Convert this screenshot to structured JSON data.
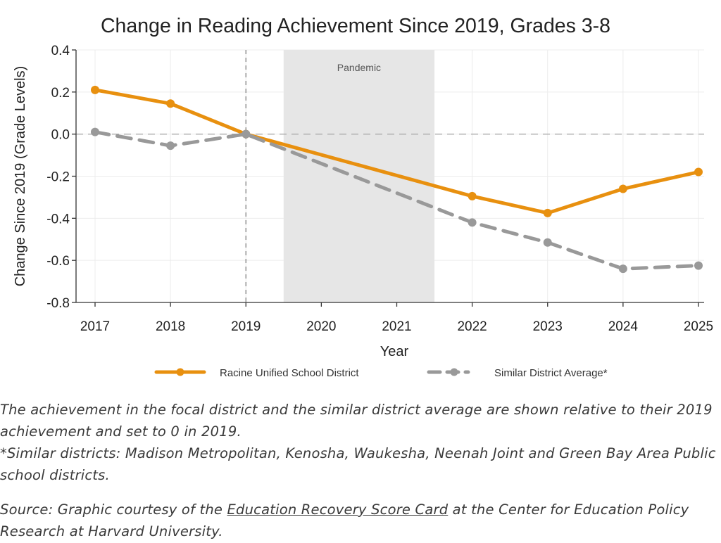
{
  "chart_data": {
    "type": "line",
    "title": "Change in Reading Achievement Since 2019, Grades 3-8",
    "xlabel": "Year",
    "ylabel": "Change Since 2019 (Grade Levels)",
    "x": [
      2017,
      2018,
      2019,
      2020,
      2021,
      2022,
      2023,
      2024,
      2025
    ],
    "ylim": [
      -0.8,
      0.4
    ],
    "yticks": [
      0.4,
      0.2,
      0.0,
      -0.2,
      -0.4,
      -0.6,
      -0.8
    ],
    "ytick_labels": [
      "0.4",
      "0.2",
      "0.0",
      "-0.2",
      "-0.4",
      "-0.6",
      "-0.8"
    ],
    "grid": true,
    "legend_position": "bottom",
    "series": [
      {
        "name": "Racine Unified School District",
        "x": [
          2017,
          2018,
          2019,
          2022,
          2023,
          2024,
          2025
        ],
        "values": [
          0.21,
          0.145,
          0.0,
          -0.295,
          -0.375,
          -0.26,
          -0.18
        ],
        "color": "#E8900F",
        "style": "solid"
      },
      {
        "name": "Similar District Average*",
        "x": [
          2017,
          2018,
          2019,
          2022,
          2023,
          2024,
          2025
        ],
        "values": [
          0.01,
          -0.055,
          0.0,
          -0.42,
          -0.515,
          -0.64,
          -0.625
        ],
        "color": "#999999",
        "style": "dashed"
      }
    ],
    "shaded_region": {
      "label": "Pandemic",
      "x_start": 2019.5,
      "x_end": 2021.5,
      "color": "#e6e6e6"
    },
    "reference_lines": {
      "y_zero": 0.0,
      "x_vertical": 2019
    }
  },
  "captions": {
    "line1": "The achievement in the focal district and the similar district average are shown relative to their 2019 achievement and set to 0 in 2019.",
    "line2": "*Similar districts: Madison Metropolitan, Kenosha, Waukesha, Neenah Joint and Green Bay Area Public school districts.",
    "source_prefix": "Source: Graphic courtesy of the ",
    "source_link": "Education Recovery Score Card",
    "source_suffix": " at the Center for Education Policy Research at Harvard University."
  }
}
